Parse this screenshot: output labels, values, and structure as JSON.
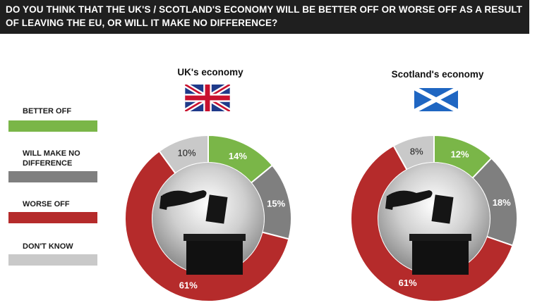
{
  "header": {
    "question": "DO YOU THINK THAT THE UK'S / SCOTLAND'S ECONOMY WILL BE BETTER OFF OR WORSE OFF AS A RESULT OF LEAVING THE EU, OR WILL IT MAKE NO DIFFERENCE?"
  },
  "legend": [
    {
      "label": "BETTER OFF",
      "color": "#7ab648"
    },
    {
      "label": "WILL MAKE NO DIFFERENCE",
      "color": "#7f7f7f"
    },
    {
      "label": "WORSE OFF",
      "color": "#b52b2b"
    },
    {
      "label": "DON'T KNOW",
      "color": "#c9c9c9"
    }
  ],
  "chart_data": [
    {
      "type": "pie",
      "title": "UK's economy",
      "flag": "union-jack",
      "categories": [
        "BETTER OFF",
        "WILL MAKE NO DIFFERENCE",
        "WORSE OFF",
        "DON'T KNOW"
      ],
      "values": [
        14,
        15,
        61,
        10
      ],
      "labels": [
        "14%",
        "15%",
        "61%",
        "10%"
      ]
    },
    {
      "type": "pie",
      "title": "Scotland's economy",
      "flag": "saltire",
      "categories": [
        "BETTER OFF",
        "WILL MAKE NO DIFFERENCE",
        "WORSE OFF",
        "DON'T KNOW"
      ],
      "values": [
        12,
        18,
        61,
        8
      ],
      "labels": [
        "12%",
        "18%",
        "61%",
        "8%"
      ]
    }
  ]
}
